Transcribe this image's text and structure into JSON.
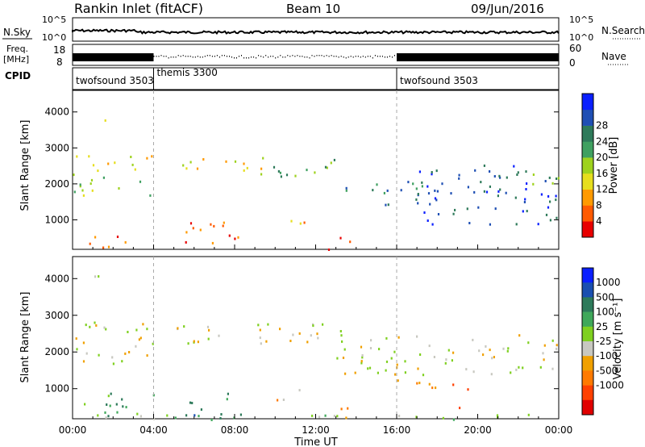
{
  "header": {
    "title": "Rankin Inlet (fitACF)",
    "beam": "Beam 10",
    "date": "09/Jun/2016"
  },
  "panels": {
    "nsky_label": "N.Sky",
    "nsearch_label": "N.Search",
    "nsky_ticks": [
      "10^5",
      "10^0"
    ],
    "nsky_right_ticks": [
      "10^5",
      "10^0"
    ],
    "freq_label": "Freq.",
    "freq_unit": "[MHz]",
    "freq_ticks": [
      "18",
      "8"
    ],
    "nave_label": "Nave",
    "nave_ticks": [
      "60",
      "0"
    ],
    "cpid_label": "CPID",
    "cpid_segments": [
      {
        "name": "twofsound 3503",
        "start": 0,
        "end": 4
      },
      {
        "name": "themis 3300",
        "start": 4,
        "end": 16
      },
      {
        "name": "twofsound 3503",
        "start": 16,
        "end": 24
      }
    ]
  },
  "colors": {
    "power": [
      "#0a1fff",
      "#1f4fb4",
      "#2e7a5a",
      "#3fa060",
      "#9ed21e",
      "#e6de1e",
      "#ff9a00",
      "#ff5a00",
      "#e80000"
    ],
    "velocity": [
      "#0a1fff",
      "#1a4fb0",
      "#2d7a5a",
      "#3fa85a",
      "#7fd020",
      "#c8c8c0",
      "#f0a000",
      "#ff7a00",
      "#ff4000",
      "#e00000"
    ],
    "bar_fill": "#000000",
    "nsky_trace": "#000000"
  },
  "chart_data": [
    {
      "type": "heatmap",
      "panel": "power",
      "ylabel": "Slant Range [km]",
      "xlabel": "Time UT",
      "x_ticks": [
        "00:00",
        "04:00",
        "08:00",
        "12:00",
        "16:00",
        "20:00",
        "00:00"
      ],
      "y_ticks": [
        1000,
        2000,
        3000,
        4000
      ],
      "xlim": [
        0,
        24
      ],
      "ylim": [
        180,
        4600
      ],
      "colorbar_label": "Power [dB]",
      "colorbar_ticks": [
        "4",
        "8",
        "12",
        "16",
        "20",
        "24",
        "28"
      ],
      "echo_regions": [
        {
          "t0": 0.1,
          "t1": 4.0,
          "r0": 2400,
          "r1": 2900,
          "level": 5
        },
        {
          "t0": 0.0,
          "t1": 3.8,
          "r0": 1700,
          "r1": 2300,
          "level": 4
        },
        {
          "t0": 5.0,
          "t1": 9.5,
          "r0": 2300,
          "r1": 2800,
          "level": 5
        },
        {
          "t0": 9.5,
          "t1": 13.8,
          "r0": 2200,
          "r1": 2700,
          "level": 3
        },
        {
          "t0": 13.0,
          "t1": 18.0,
          "r0": 1400,
          "r1": 2100,
          "level": 2
        },
        {
          "t0": 17.0,
          "t1": 24.0,
          "r0": 1500,
          "r1": 2600,
          "level": 1
        },
        {
          "t0": 20.0,
          "t1": 24.0,
          "r0": 2000,
          "r1": 2400,
          "level": 3
        },
        {
          "t0": 0.8,
          "t1": 3.5,
          "r0": 200,
          "r1": 600,
          "level": 7
        },
        {
          "t0": 5.5,
          "t1": 8.5,
          "r0": 200,
          "r1": 1000,
          "level": 7
        },
        {
          "t0": 10.0,
          "t1": 11.5,
          "r0": 700,
          "r1": 1000,
          "level": 6
        },
        {
          "t0": 12.5,
          "t1": 14.0,
          "r0": 200,
          "r1": 550,
          "level": 8
        },
        {
          "t0": 1.0,
          "t1": 1.6,
          "r0": 3700,
          "r1": 4100,
          "level": 4
        },
        {
          "t0": 17.0,
          "t1": 24.0,
          "r0": 900,
          "r1": 1400,
          "level": 1
        }
      ]
    },
    {
      "type": "heatmap",
      "panel": "velocity",
      "ylabel": "Slant Range [km]",
      "xlabel": "Time UT",
      "x_ticks": [
        "00:00",
        "04:00",
        "08:00",
        "12:00",
        "16:00",
        "20:00",
        "00:00"
      ],
      "y_ticks": [
        1000,
        2000,
        3000,
        4000
      ],
      "xlim": [
        0,
        24
      ],
      "ylim": [
        180,
        4600
      ],
      "colorbar_label": "Velocity [m s⁻¹]",
      "colorbar_ticks": [
        "1000",
        "500",
        "100",
        "25",
        "-25",
        "-100",
        "-500",
        "-1000"
      ],
      "echo_regions": [
        {
          "t0": 0.1,
          "t1": 4.0,
          "r0": 1700,
          "r1": 2900,
          "level": 5
        },
        {
          "t0": 5.0,
          "t1": 13.8,
          "r0": 2200,
          "r1": 2800,
          "level": 5
        },
        {
          "t0": 13.0,
          "t1": 24.0,
          "r0": 1400,
          "r1": 2500,
          "level": 5
        },
        {
          "t0": 0.1,
          "t1": 4.0,
          "r0": 200,
          "r1": 900,
          "level": 3
        },
        {
          "t0": 5.5,
          "t1": 8.5,
          "r0": 200,
          "r1": 900,
          "level": 2
        },
        {
          "t0": 12.5,
          "t1": 14.0,
          "r0": 200,
          "r1": 550,
          "level": 7
        },
        {
          "t0": 16.0,
          "t1": 19.5,
          "r0": 1000,
          "r1": 1400,
          "level": 7
        },
        {
          "t0": 19.0,
          "t1": 20.0,
          "r0": 500,
          "r1": 750,
          "level": 7
        },
        {
          "t0": 10.0,
          "t1": 11.5,
          "r0": 700,
          "r1": 1000,
          "level": 6
        },
        {
          "t0": 0.5,
          "t1": 24.0,
          "r0": 180,
          "r1": 320,
          "level": 4
        },
        {
          "t0": 1.0,
          "t1": 1.6,
          "r0": 3700,
          "r1": 4200,
          "level": 5
        }
      ]
    }
  ]
}
